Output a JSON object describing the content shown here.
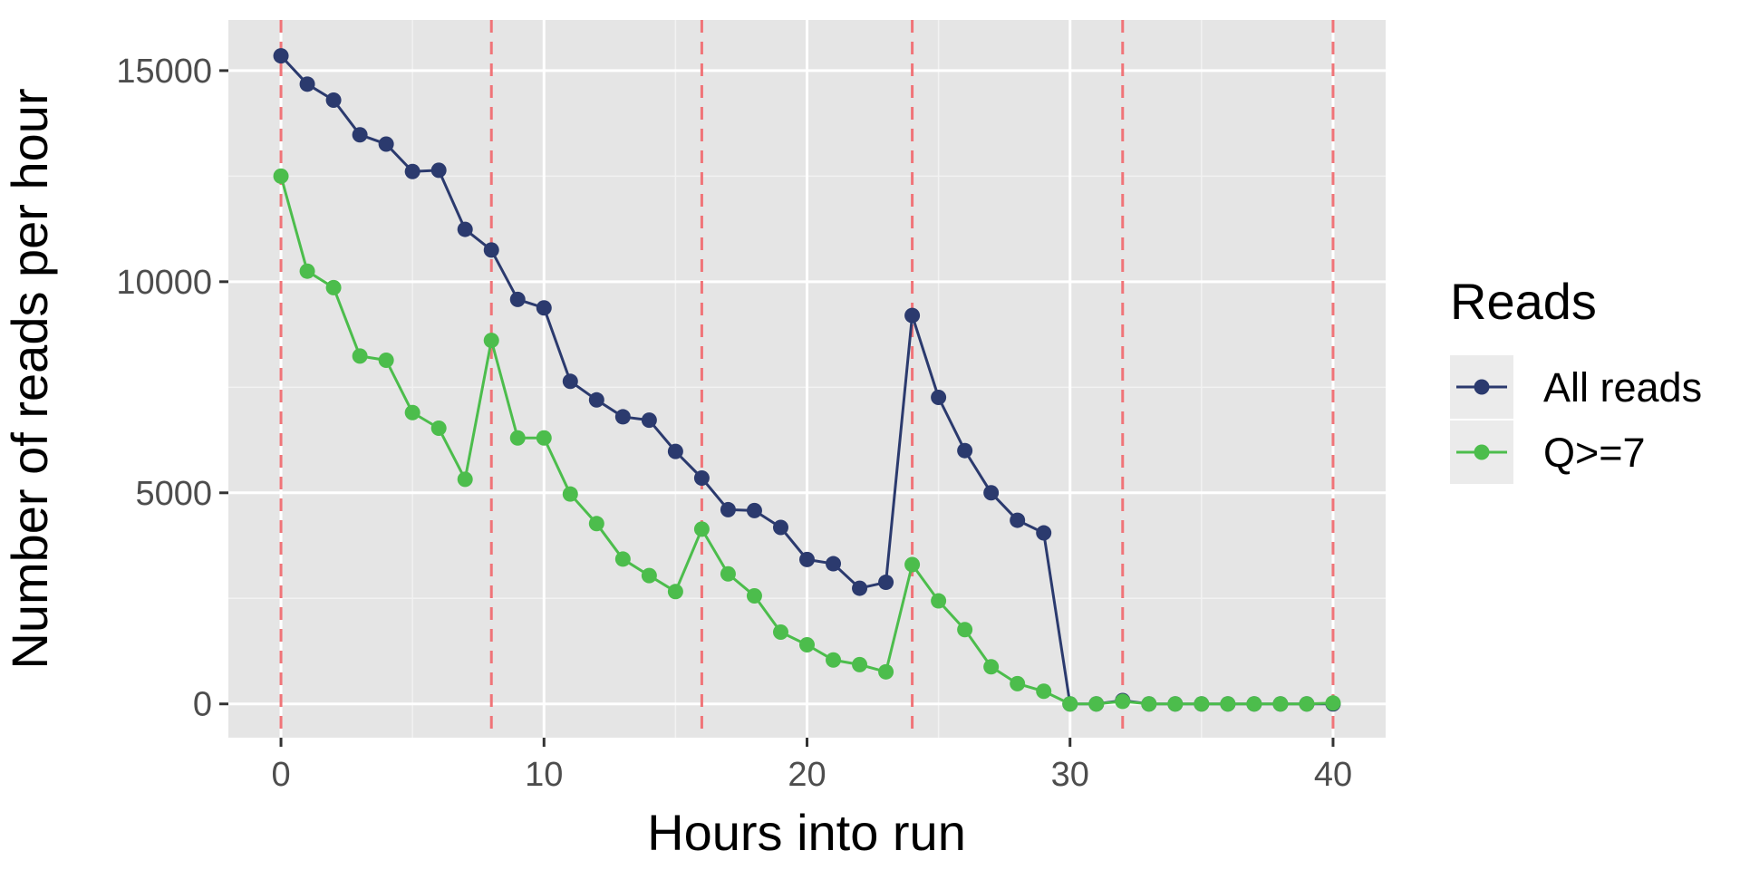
{
  "chart_data": {
    "type": "line",
    "xlabel": "Hours into run",
    "ylabel": "Number of reads per hour",
    "xlim": [
      -2,
      42
    ],
    "ylim": [
      -800,
      16200
    ],
    "x_ticks": [
      0,
      10,
      20,
      30,
      40
    ],
    "x_tick_labels": [
      "0",
      "10",
      "20",
      "30",
      "40"
    ],
    "y_ticks": [
      0,
      5000,
      10000,
      15000
    ],
    "y_tick_labels": [
      "0",
      "5000",
      "10000",
      "15000"
    ],
    "grid": true,
    "panel_background": "#e5e5e5",
    "vlines": {
      "x": [
        0,
        8,
        16,
        24,
        32,
        40
      ],
      "color": "#f07478",
      "style": "dashed"
    },
    "legend": {
      "title": "Reads",
      "placement": "right"
    },
    "x": [
      0,
      1,
      2,
      3,
      4,
      5,
      6,
      7,
      8,
      9,
      10,
      11,
      12,
      13,
      14,
      15,
      16,
      17,
      18,
      19,
      20,
      21,
      22,
      23,
      24,
      25,
      26,
      27,
      28,
      29,
      30,
      31,
      32,
      33,
      34,
      35,
      36,
      37,
      38,
      39,
      40
    ],
    "series": [
      {
        "name": "All reads",
        "color": "#2b3a6e",
        "values": [
          15350,
          14680,
          14300,
          13480,
          13260,
          12610,
          12640,
          11240,
          10750,
          9580,
          9380,
          7640,
          7200,
          6800,
          6720,
          5980,
          5350,
          4600,
          4580,
          4180,
          3420,
          3320,
          2740,
          2880,
          9200,
          7260,
          6000,
          5000,
          4350,
          4050,
          0,
          0,
          80,
          0,
          0,
          0,
          0,
          0,
          0,
          0,
          0
        ]
      },
      {
        "name": "Q>=7",
        "color": "#4cbd4c",
        "values": [
          12500,
          10250,
          9860,
          8240,
          8140,
          6900,
          6530,
          5320,
          8610,
          6300,
          6300,
          4970,
          4270,
          3430,
          3040,
          2660,
          4140,
          3080,
          2560,
          1700,
          1400,
          1040,
          930,
          760,
          3300,
          2440,
          1760,
          880,
          480,
          300,
          0,
          0,
          60,
          0,
          0,
          0,
          0,
          0,
          0,
          0,
          20
        ]
      }
    ]
  }
}
